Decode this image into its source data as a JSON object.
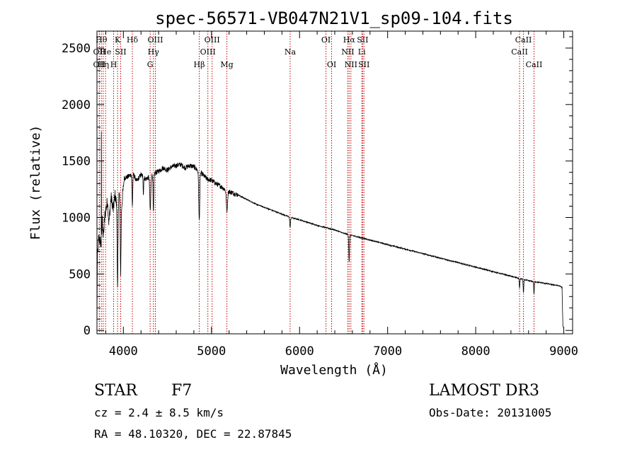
{
  "chart_data": {
    "type": "line",
    "title": "spec-56571-VB047N21V1_sp09-104.fits",
    "xlabel": "Wavelength (Å)",
    "ylabel": "Flux (relative)",
    "xlim": [
      3700,
      9100
    ],
    "ylim": [
      -30,
      2650
    ],
    "xticks": [
      4000,
      5000,
      6000,
      7000,
      8000,
      9000
    ],
    "yticks": [
      0,
      500,
      1000,
      1500,
      2000,
      2500
    ],
    "continuum": [
      [
        3700,
        0
      ],
      [
        3705,
        650
      ],
      [
        3720,
        820
      ],
      [
        3750,
        760
      ],
      [
        3760,
        980
      ],
      [
        3770,
        820
      ],
      [
        3790,
        1020
      ],
      [
        3820,
        1150
      ],
      [
        3835,
        950
      ],
      [
        3860,
        1180
      ],
      [
        3885,
        1070
      ],
      [
        3905,
        1200
      ],
      [
        3935,
        1060
      ],
      [
        3950,
        1210
      ],
      [
        3980,
        1100
      ],
      [
        4010,
        1350
      ],
      [
        4050,
        1360
      ],
      [
        4110,
        1390
      ],
      [
        4150,
        1320
      ],
      [
        4200,
        1380
      ],
      [
        4250,
        1340
      ],
      [
        4300,
        1360
      ],
      [
        4350,
        1390
      ],
      [
        4400,
        1410
      ],
      [
        4450,
        1440
      ],
      [
        4500,
        1420
      ],
      [
        4550,
        1450
      ],
      [
        4600,
        1460
      ],
      [
        4650,
        1470
      ],
      [
        4700,
        1440
      ],
      [
        4750,
        1460
      ],
      [
        4800,
        1450
      ],
      [
        4840,
        1420
      ],
      [
        4900,
        1380
      ],
      [
        4950,
        1340
      ],
      [
        5000,
        1330
      ],
      [
        5050,
        1300
      ],
      [
        5100,
        1280
      ],
      [
        5150,
        1250
      ],
      [
        5200,
        1230
      ],
      [
        5300,
        1200
      ],
      [
        5400,
        1160
      ],
      [
        5500,
        1120
      ],
      [
        5600,
        1090
      ],
      [
        5700,
        1060
      ],
      [
        5800,
        1030
      ],
      [
        5900,
        1000
      ],
      [
        6000,
        980
      ],
      [
        6100,
        955
      ],
      [
        6200,
        930
      ],
      [
        6300,
        910
      ],
      [
        6400,
        890
      ],
      [
        6500,
        860
      ],
      [
        6600,
        840
      ],
      [
        6700,
        820
      ],
      [
        6800,
        800
      ],
      [
        7000,
        760
      ],
      [
        7200,
        720
      ],
      [
        7400,
        680
      ],
      [
        7600,
        640
      ],
      [
        7800,
        600
      ],
      [
        8000,
        560
      ],
      [
        8200,
        520
      ],
      [
        8400,
        480
      ],
      [
        8600,
        440
      ],
      [
        8800,
        415
      ],
      [
        8950,
        395
      ],
      [
        8980,
        380
      ],
      [
        8990,
        30
      ]
    ],
    "absorption_features": [
      {
        "x": 3934,
        "depth": 720,
        "width": 6
      },
      {
        "x": 3969,
        "depth": 640,
        "width": 6
      },
      {
        "x": 4102,
        "depth": 280,
        "width": 6
      },
      {
        "x": 4227,
        "depth": 150,
        "width": 4
      },
      {
        "x": 4305,
        "depth": 300,
        "width": 8
      },
      {
        "x": 4341,
        "depth": 350,
        "width": 6
      },
      {
        "x": 4861,
        "depth": 430,
        "width": 8
      },
      {
        "x": 5175,
        "depth": 180,
        "width": 10
      },
      {
        "x": 5893,
        "depth": 90,
        "width": 6
      },
      {
        "x": 6563,
        "depth": 240,
        "width": 6
      },
      {
        "x": 8498,
        "depth": 90,
        "width": 5
      },
      {
        "x": 8542,
        "depth": 120,
        "width": 5
      },
      {
        "x": 8662,
        "depth": 110,
        "width": 5
      }
    ],
    "spike": {
      "x": 3750,
      "y": 1760
    },
    "line_markers": [
      {
        "x": 3727,
        "label": "OII",
        "row": 2
      },
      {
        "x": 3727,
        "label": "OII",
        "row": 1
      },
      {
        "x": 3750,
        "label": "Hθ",
        "row": 0
      },
      {
        "x": 3771,
        "label": "Hη",
        "row": 2
      },
      {
        "x": 3798,
        "label": "He",
        "row": 1
      },
      {
        "x": 3889,
        "label": "H",
        "row": 2
      },
      {
        "x": 3934,
        "label": "K",
        "row": 0
      },
      {
        "x": 3969,
        "label": "SII",
        "row": 1
      },
      {
        "x": 4102,
        "label": "Hδ",
        "row": 0
      },
      {
        "x": 4304,
        "label": "G",
        "row": 2
      },
      {
        "x": 4341,
        "label": "Hγ",
        "row": 1
      },
      {
        "x": 4363,
        "label": "OIII",
        "row": 0
      },
      {
        "x": 4861,
        "label": "Hβ",
        "row": 2
      },
      {
        "x": 4959,
        "label": "OIII",
        "row": 1
      },
      {
        "x": 5007,
        "label": "OIII",
        "row": 0
      },
      {
        "x": 5175,
        "label": "Mg",
        "row": 2
      },
      {
        "x": 5893,
        "label": "Na",
        "row": 1
      },
      {
        "x": 6300,
        "label": "OI",
        "row": 0
      },
      {
        "x": 6364,
        "label": "OI",
        "row": 2
      },
      {
        "x": 6548,
        "label": "NII",
        "row": 1
      },
      {
        "x": 6563,
        "label": "Hα",
        "row": 0
      },
      {
        "x": 6583,
        "label": "NII",
        "row": 2
      },
      {
        "x": 6707,
        "label": "Li",
        "row": 1
      },
      {
        "x": 6716,
        "label": "SII",
        "row": 0
      },
      {
        "x": 6731,
        "label": "SII",
        "row": 2
      },
      {
        "x": 8498,
        "label": "CaII",
        "row": 1
      },
      {
        "x": 8542,
        "label": "CaII",
        "row": 0
      },
      {
        "x": 8662,
        "label": "CaII",
        "row": 2
      }
    ],
    "marker_color": "#c00000",
    "line_color": "#000000"
  },
  "info": {
    "class_label": "STAR",
    "subclass": "F7",
    "survey": "LAMOST DR3",
    "redshift": "cz =   2.4 ± 8.5 km/s",
    "obs_date": "Obs-Date: 20131005",
    "coords": "RA =  48.10320, DEC =  22.87845"
  }
}
